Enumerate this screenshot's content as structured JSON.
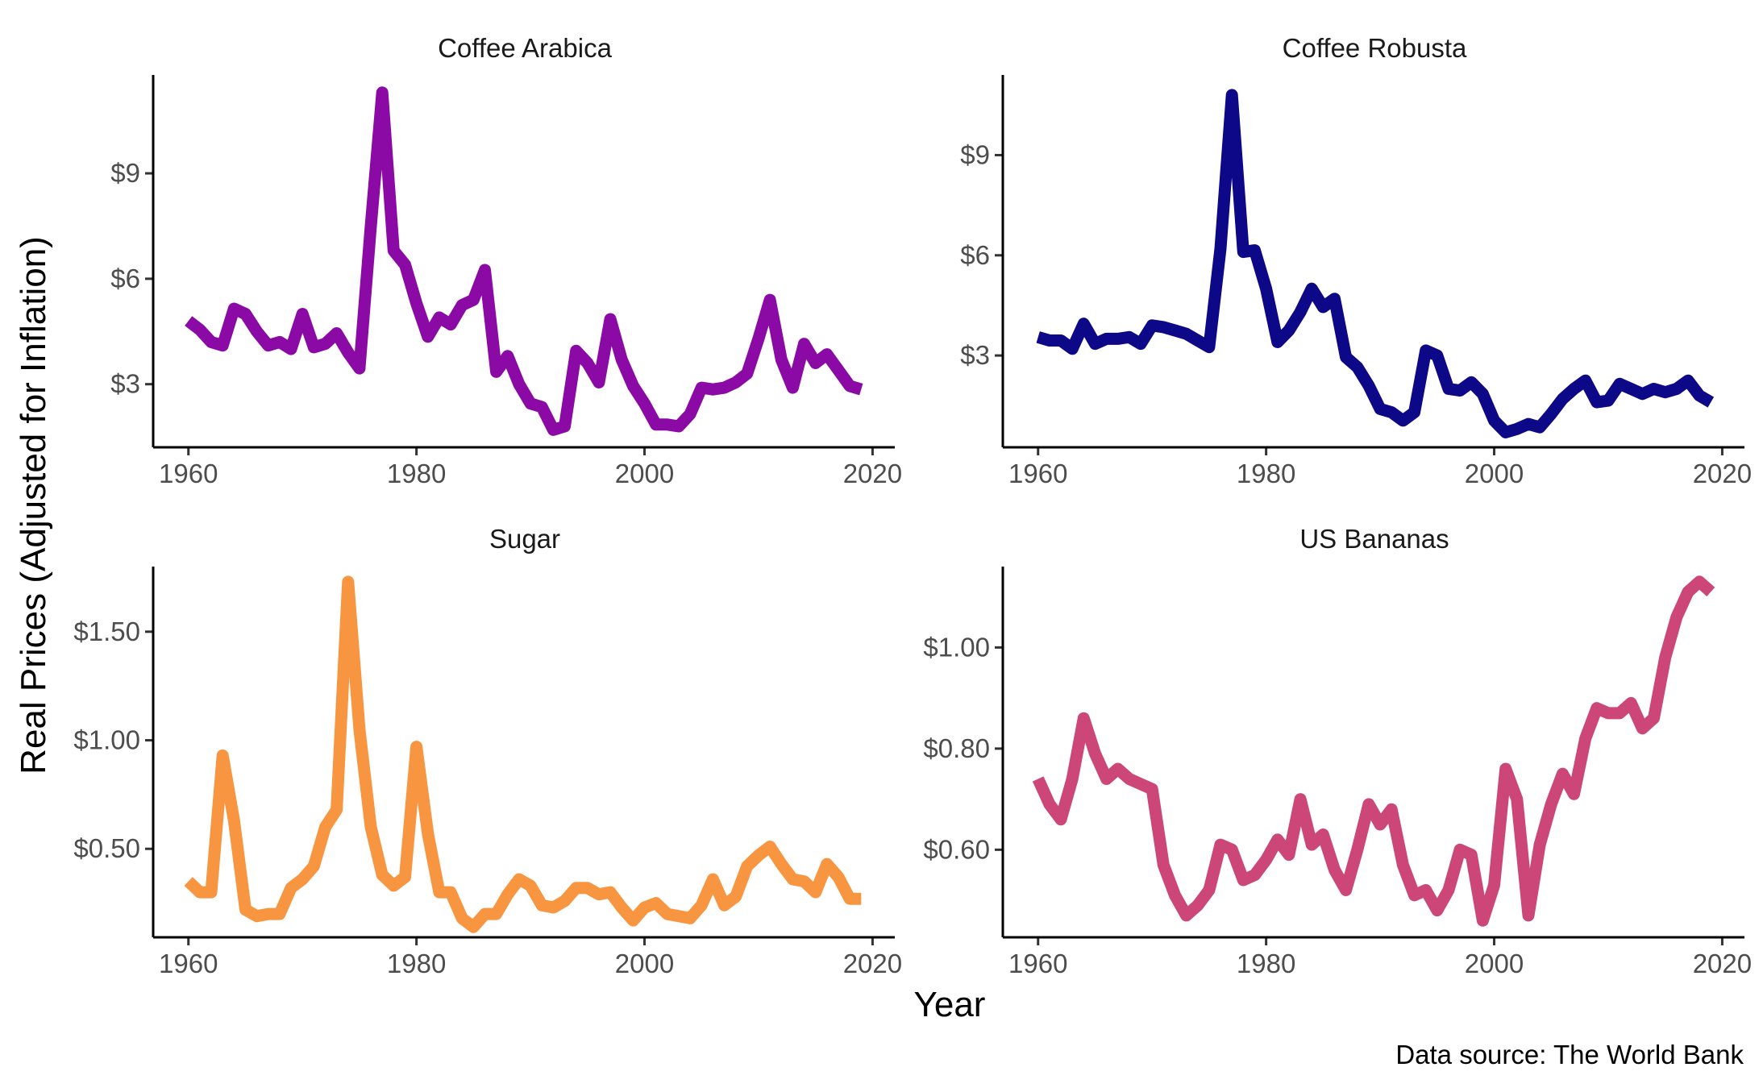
{
  "figure": {
    "xlabel": "Year",
    "ylabel": "Real Prices (Adjusted for Inflation)",
    "caption": "Data source: The World Bank"
  },
  "chart_data": [
    {
      "type": "line",
      "title": "Coffee Arabica",
      "color": "#8b0aa5",
      "xlim": [
        1957.05,
        2021.95
      ],
      "ylim": [
        1.25,
        11.8
      ],
      "x_ticks": [
        1960,
        1980,
        2000,
        2020
      ],
      "x_tick_labels": [
        "1960",
        "1980",
        "2000",
        "2020"
      ],
      "y_ticks": [
        3,
        6,
        9
      ],
      "y_tick_labels": [
        "$3",
        "$6",
        "$9"
      ],
      "x": [
        1960,
        1961,
        1962,
        1963,
        1964,
        1965,
        1966,
        1967,
        1968,
        1969,
        1970,
        1971,
        1972,
        1973,
        1974,
        1975,
        1976,
        1977,
        1978,
        1979,
        1980,
        1981,
        1982,
        1983,
        1984,
        1985,
        1986,
        1987,
        1988,
        1989,
        1990,
        1991,
        1992,
        1993,
        1994,
        1995,
        1996,
        1997,
        1998,
        1999,
        2000,
        2001,
        2002,
        2003,
        2004,
        2005,
        2006,
        2007,
        2008,
        2009,
        2010,
        2011,
        2012,
        2013,
        2014,
        2015,
        2016,
        2017,
        2018,
        2019
      ],
      "values": [
        4.8,
        4.55,
        4.2,
        4.1,
        5.15,
        5.0,
        4.5,
        4.1,
        4.2,
        4.0,
        5.0,
        4.05,
        4.15,
        4.45,
        3.9,
        3.45,
        7.5,
        11.3,
        6.8,
        6.4,
        5.3,
        4.35,
        4.9,
        4.7,
        5.25,
        5.4,
        6.25,
        3.35,
        3.8,
        3.0,
        2.45,
        2.35,
        1.7,
        1.8,
        3.95,
        3.6,
        3.05,
        4.85,
        3.7,
        2.95,
        2.45,
        1.85,
        1.85,
        1.8,
        2.15,
        2.9,
        2.85,
        2.9,
        3.05,
        3.3,
        4.3,
        5.4,
        3.7,
        2.9,
        4.15,
        3.6,
        3.85,
        3.4,
        2.95,
        2.85
      ]
    },
    {
      "type": "line",
      "title": "Coffee Robusta",
      "color": "#0d0887",
      "xlim": [
        1957.05,
        2021.95
      ],
      "ylim": [
        0.3,
        11.4
      ],
      "x_ticks": [
        1960,
        1980,
        2000,
        2020
      ],
      "x_tick_labels": [
        "1960",
        "1980",
        "2000",
        "2020"
      ],
      "y_ticks": [
        3,
        6,
        9
      ],
      "y_tick_labels": [
        "$3",
        "$6",
        "$9"
      ],
      "x": [
        1960,
        1961,
        1962,
        1963,
        1964,
        1965,
        1966,
        1967,
        1968,
        1969,
        1970,
        1971,
        1972,
        1973,
        1974,
        1975,
        1976,
        1977,
        1978,
        1979,
        1980,
        1981,
        1982,
        1983,
        1984,
        1985,
        1986,
        1987,
        1988,
        1989,
        1990,
        1991,
        1992,
        1993,
        1994,
        1995,
        1996,
        1997,
        1998,
        1999,
        2000,
        2001,
        2002,
        2003,
        2004,
        2005,
        2006,
        2007,
        2008,
        2009,
        2010,
        2011,
        2012,
        2013,
        2014,
        2015,
        2016,
        2017,
        2018,
        2019
      ],
      "values": [
        3.55,
        3.45,
        3.45,
        3.2,
        3.95,
        3.35,
        3.5,
        3.5,
        3.55,
        3.35,
        3.9,
        3.85,
        3.75,
        3.65,
        3.45,
        3.25,
        6.2,
        10.8,
        6.1,
        6.15,
        5.0,
        3.4,
        3.75,
        4.3,
        5.0,
        4.45,
        4.7,
        2.95,
        2.65,
        2.1,
        1.4,
        1.3,
        1.05,
        1.3,
        3.15,
        3.0,
        2.0,
        1.95,
        2.2,
        1.85,
        1.05,
        0.7,
        0.8,
        0.95,
        0.85,
        1.25,
        1.7,
        2.0,
        2.25,
        1.6,
        1.65,
        2.15,
        2.0,
        1.85,
        2.0,
        1.9,
        2.0,
        2.25,
        1.8,
        1.6
      ]
    },
    {
      "type": "line",
      "title": "Sugar",
      "color": "#f89540",
      "xlim": [
        1957.05,
        2021.95
      ],
      "ylim": [
        0.1,
        1.8
      ],
      "x_ticks": [
        1960,
        1980,
        2000,
        2020
      ],
      "x_tick_labels": [
        "1960",
        "1980",
        "2000",
        "2020"
      ],
      "y_ticks": [
        0.5,
        1.0,
        1.5
      ],
      "y_tick_labels": [
        "$0.50",
        "$1.00",
        "$1.50"
      ],
      "x": [
        1960,
        1961,
        1962,
        1963,
        1964,
        1965,
        1966,
        1967,
        1968,
        1969,
        1970,
        1971,
        1972,
        1973,
        1974,
        1975,
        1976,
        1977,
        1978,
        1979,
        1980,
        1981,
        1982,
        1983,
        1984,
        1985,
        1986,
        1987,
        1988,
        1989,
        1990,
        1991,
        1992,
        1993,
        1994,
        1995,
        1996,
        1997,
        1998,
        1999,
        2000,
        2001,
        2002,
        2003,
        2004,
        2005,
        2006,
        2007,
        2008,
        2009,
        2010,
        2011,
        2012,
        2013,
        2014,
        2015,
        2016,
        2017,
        2018,
        2019
      ],
      "values": [
        0.35,
        0.3,
        0.3,
        0.93,
        0.63,
        0.22,
        0.19,
        0.2,
        0.2,
        0.32,
        0.36,
        0.42,
        0.6,
        0.68,
        1.73,
        1.05,
        0.6,
        0.38,
        0.33,
        0.37,
        0.97,
        0.57,
        0.3,
        0.3,
        0.18,
        0.14,
        0.2,
        0.2,
        0.29,
        0.36,
        0.33,
        0.24,
        0.23,
        0.26,
        0.32,
        0.32,
        0.29,
        0.3,
        0.23,
        0.17,
        0.23,
        0.25,
        0.2,
        0.19,
        0.18,
        0.24,
        0.36,
        0.24,
        0.28,
        0.42,
        0.47,
        0.51,
        0.43,
        0.36,
        0.35,
        0.3,
        0.43,
        0.37,
        0.27,
        0.27
      ]
    },
    {
      "type": "line",
      "title": "US Bananas",
      "color": "#cc4778",
      "xlim": [
        1957.05,
        2021.95
      ],
      "ylim": [
        0.43,
        1.16
      ],
      "x_ticks": [
        1960,
        1980,
        2000,
        2020
      ],
      "x_tick_labels": [
        "1960",
        "1980",
        "2000",
        "2020"
      ],
      "y_ticks": [
        0.6,
        0.8,
        1.0
      ],
      "y_tick_labels": [
        "$0.60",
        "$0.80",
        "$1.00"
      ],
      "x": [
        1960,
        1961,
        1962,
        1963,
        1964,
        1965,
        1966,
        1967,
        1968,
        1969,
        1970,
        1971,
        1972,
        1973,
        1974,
        1975,
        1976,
        1977,
        1978,
        1979,
        1980,
        1981,
        1982,
        1983,
        1984,
        1985,
        1986,
        1987,
        1988,
        1989,
        1990,
        1991,
        1992,
        1993,
        1994,
        1995,
        1996,
        1997,
        1998,
        1999,
        2000,
        2001,
        2002,
        2003,
        2004,
        2005,
        2006,
        2007,
        2008,
        2009,
        2010,
        2011,
        2012,
        2013,
        2014,
        2015,
        2016,
        2017,
        2018,
        2019
      ],
      "values": [
        0.74,
        0.69,
        0.66,
        0.74,
        0.86,
        0.79,
        0.74,
        0.76,
        0.74,
        0.73,
        0.72,
        0.57,
        0.51,
        0.47,
        0.49,
        0.52,
        0.61,
        0.6,
        0.54,
        0.55,
        0.58,
        0.62,
        0.59,
        0.7,
        0.61,
        0.63,
        0.56,
        0.52,
        0.6,
        0.69,
        0.65,
        0.68,
        0.57,
        0.51,
        0.52,
        0.48,
        0.52,
        0.6,
        0.59,
        0.46,
        0.53,
        0.76,
        0.7,
        0.47,
        0.61,
        0.69,
        0.75,
        0.71,
        0.82,
        0.88,
        0.87,
        0.87,
        0.89,
        0.84,
        0.86,
        0.98,
        1.06,
        1.11,
        1.13,
        1.11
      ]
    }
  ]
}
